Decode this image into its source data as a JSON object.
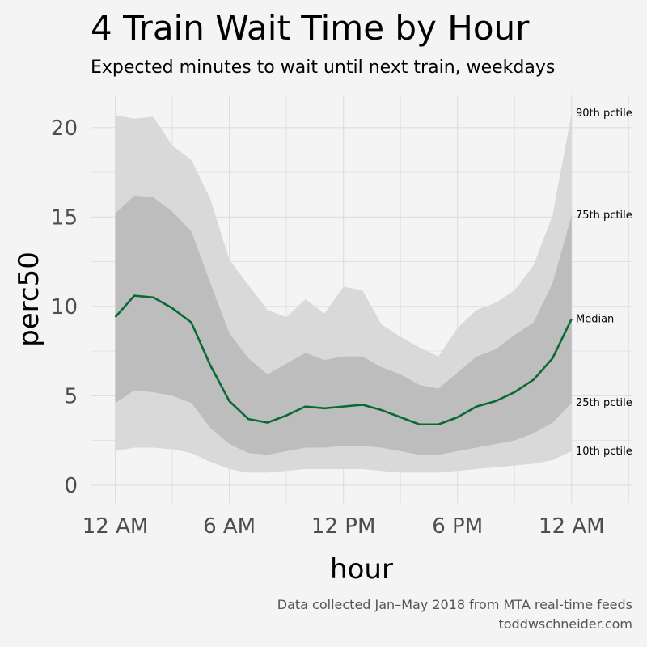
{
  "chart_data": {
    "type": "area",
    "title": "4 Train Wait Time by Hour",
    "subtitle": "Expected minutes to wait until next train, weekdays",
    "xlabel": "hour",
    "ylabel": "perc50",
    "x_ticks": [
      "12 AM",
      "6 AM",
      "12 PM",
      "6 PM",
      "12 AM"
    ],
    "y_ticks": [
      "0",
      "5",
      "10",
      "15",
      "20"
    ],
    "xlim": [
      -1.3,
      27.2
    ],
    "ylim": [
      -1,
      21.8
    ],
    "grid": true,
    "x": [
      0,
      1,
      2,
      3,
      4,
      5,
      6,
      7,
      8,
      9,
      10,
      11,
      12,
      13,
      14,
      15,
      16,
      17,
      18,
      19,
      20,
      21,
      22,
      23,
      24
    ],
    "series": [
      {
        "name": "10th pctile",
        "values": [
          1.9,
          2.1,
          2.1,
          2.0,
          1.8,
          1.3,
          0.9,
          0.7,
          0.7,
          0.8,
          0.9,
          0.9,
          0.9,
          0.9,
          0.8,
          0.7,
          0.7,
          0.7,
          0.8,
          0.9,
          1.0,
          1.1,
          1.2,
          1.4,
          1.9
        ]
      },
      {
        "name": "25th pctile",
        "values": [
          4.6,
          5.3,
          5.2,
          5.0,
          4.6,
          3.2,
          2.3,
          1.8,
          1.7,
          1.9,
          2.1,
          2.1,
          2.2,
          2.2,
          2.1,
          1.9,
          1.7,
          1.7,
          1.9,
          2.1,
          2.3,
          2.5,
          2.9,
          3.5,
          4.6
        ]
      },
      {
        "name": "Median",
        "values": [
          9.4,
          10.6,
          10.5,
          9.9,
          9.1,
          6.7,
          4.7,
          3.7,
          3.5,
          3.9,
          4.4,
          4.3,
          4.4,
          4.5,
          4.2,
          3.8,
          3.4,
          3.4,
          3.8,
          4.4,
          4.7,
          5.2,
          5.9,
          7.1,
          9.3
        ]
      },
      {
        "name": "75th pctile",
        "values": [
          15.2,
          16.2,
          16.1,
          15.3,
          14.2,
          11.3,
          8.5,
          7.1,
          6.2,
          6.8,
          7.4,
          7.0,
          7.2,
          7.2,
          6.6,
          6.2,
          5.6,
          5.4,
          6.3,
          7.2,
          7.6,
          8.4,
          9.1,
          11.3,
          15.1
        ]
      },
      {
        "name": "90th pctile",
        "values": [
          20.7,
          20.5,
          20.6,
          19.0,
          18.2,
          16.0,
          12.6,
          11.2,
          9.8,
          9.4,
          10.4,
          9.6,
          11.1,
          10.9,
          9.0,
          8.3,
          7.7,
          7.2,
          8.8,
          9.8,
          10.2,
          10.9,
          12.3,
          15.1,
          20.8
        ]
      }
    ],
    "colors": {
      "background": "#f4f4f4",
      "grid": "#dedede",
      "outer_band": "#d9d9d9",
      "inner_band": "#bdbdbd",
      "median_line": "#0a6a34"
    }
  },
  "caption": {
    "line1": "Data collected Jan–May 2018 from MTA real-time feeds",
    "line2": "toddwschneider.com"
  }
}
